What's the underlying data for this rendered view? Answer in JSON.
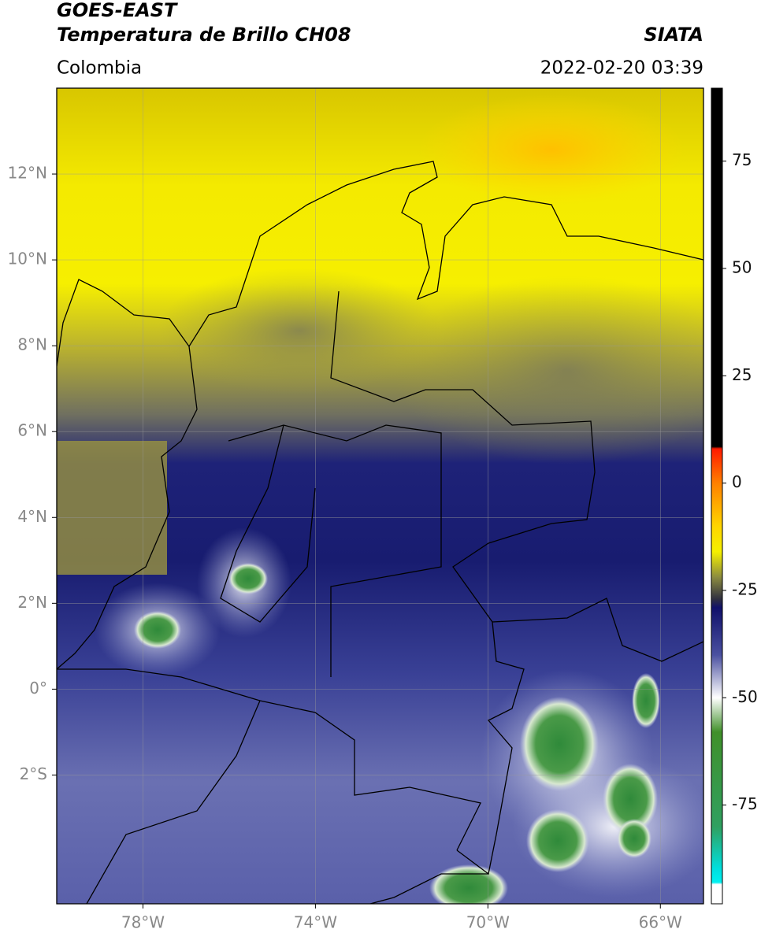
{
  "title": "GOES-EAST",
  "subtitle": "Temperatura de Brillo CH08",
  "source": "SIATA",
  "region": "Colombia",
  "timestamp": "2022-02-20 03:39",
  "map": {
    "xlim": [
      -80,
      -65
    ],
    "ylim": [
      -5,
      14
    ],
    "grid": true,
    "xticks": [
      {
        "value": -78,
        "label": "78°W"
      },
      {
        "value": -74,
        "label": "74°W"
      },
      {
        "value": -70,
        "label": "70°W"
      },
      {
        "value": -66,
        "label": "66°W"
      }
    ],
    "yticks": [
      {
        "value": 12,
        "label": "12°N"
      },
      {
        "value": 10,
        "label": "10°N"
      },
      {
        "value": 8,
        "label": "8°N"
      },
      {
        "value": 6,
        "label": "6°N"
      },
      {
        "value": 4,
        "label": "4°N"
      },
      {
        "value": 2,
        "label": "2°N"
      },
      {
        "value": 0,
        "label": "0°"
      },
      {
        "value": -2,
        "label": "2°S"
      }
    ]
  },
  "colorbar": {
    "lim": [
      -98,
      92
    ],
    "ticks": [
      75,
      50,
      25,
      0,
      -25,
      -50,
      -75
    ],
    "colormap": [
      {
        "value": 92,
        "color": "#000000"
      },
      {
        "value": 8.5,
        "color": "#000000"
      },
      {
        "value": 8,
        "color": "#ff1a00"
      },
      {
        "value": 0,
        "color": "#ff8000"
      },
      {
        "value": -10,
        "color": "#ffd500"
      },
      {
        "value": -16,
        "color": "#f5f000"
      },
      {
        "value": -22,
        "color": "#8a8a40"
      },
      {
        "value": -27,
        "color": "#303040"
      },
      {
        "value": -29,
        "color": "#10106a"
      },
      {
        "value": -40,
        "color": "#4a50a0"
      },
      {
        "value": -50,
        "color": "#ffffff"
      },
      {
        "value": -58,
        "color": "#40902a"
      },
      {
        "value": -80,
        "color": "#30a060"
      },
      {
        "value": -90,
        "color": "#00e0e0"
      },
      {
        "value": -93,
        "color": "#00f0f0"
      },
      {
        "value": -93.5,
        "color": "#ffffff"
      },
      {
        "value": -98,
        "color": "#ffffff"
      }
    ]
  }
}
